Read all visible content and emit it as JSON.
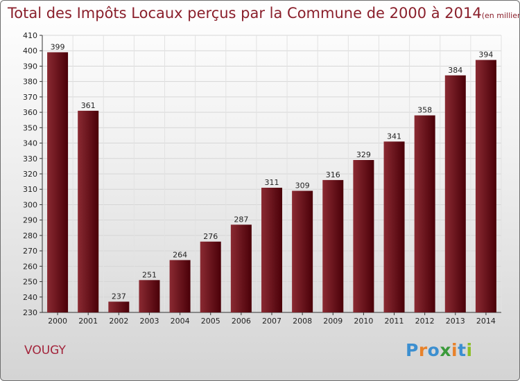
{
  "title": "Total des Impôts Locaux perçus par la Commune de 2000 à 2014",
  "title_unit": "(en milliers d'€)",
  "commune": "VOUGY",
  "logo": {
    "text": [
      "P",
      "r",
      "o",
      "x",
      "i",
      "t",
      "i"
    ],
    "colors": [
      "#3c8fd0",
      "#e8822a",
      "#3c8fd0",
      "#3a9a3a",
      "#e8822a",
      "#3c8fd0",
      "#8cbf26"
    ]
  },
  "colors": {
    "bar_light": "#8a2a32",
    "bar_dark": "#4a0008",
    "title": "#8a1f2b"
  },
  "chart_data": {
    "type": "bar",
    "title": "Total des Impôts Locaux perçus par la Commune de 2000 à 2014",
    "xlabel": "",
    "ylabel": "en milliers d'€",
    "categories": [
      "2000",
      "2001",
      "2002",
      "2003",
      "2004",
      "2005",
      "2006",
      "2007",
      "2008",
      "2009",
      "2010",
      "2011",
      "2012",
      "2013",
      "2014"
    ],
    "values": [
      399,
      361,
      237,
      251,
      264,
      276,
      287,
      311,
      309,
      316,
      329,
      341,
      358,
      384,
      394
    ],
    "ylim": [
      230,
      410
    ],
    "yticks": [
      230,
      240,
      250,
      260,
      270,
      280,
      290,
      300,
      310,
      320,
      330,
      340,
      350,
      360,
      370,
      380,
      390,
      400,
      410
    ],
    "grid": true
  }
}
